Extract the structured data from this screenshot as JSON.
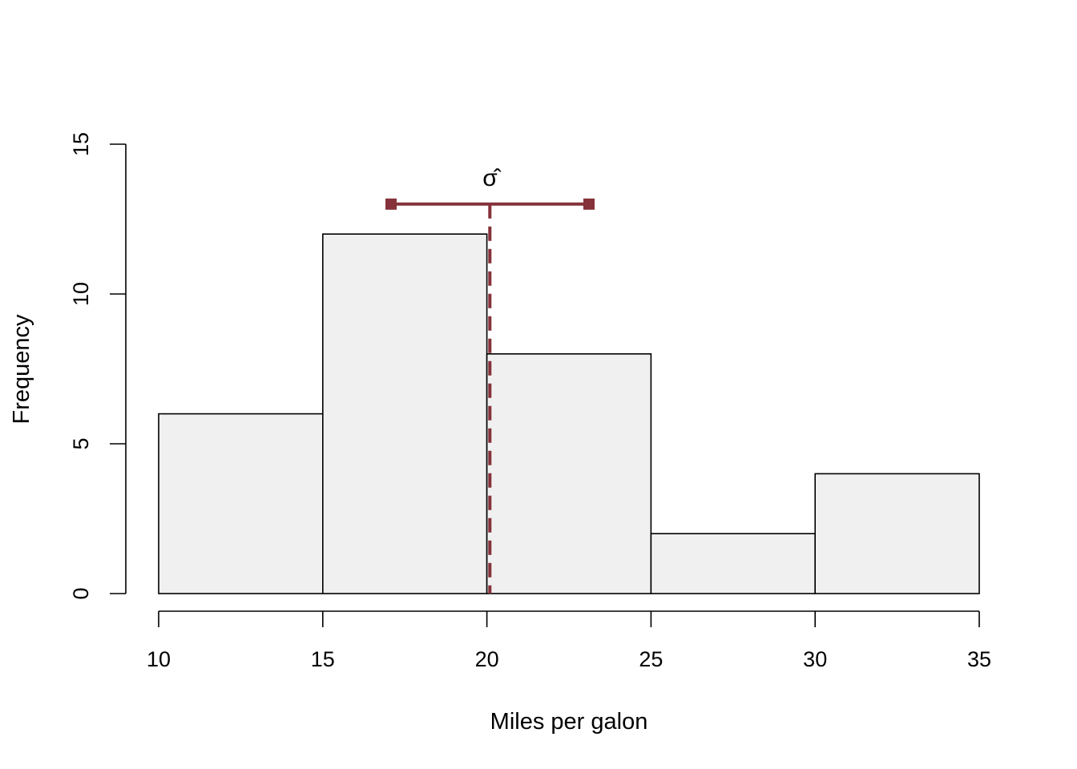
{
  "chart_data": {
    "type": "bar",
    "subtype": "histogram",
    "title": "",
    "xlabel": "Miles per galon",
    "ylabel": "Frequency",
    "bins": [
      [
        10,
        15
      ],
      [
        15,
        20
      ],
      [
        20,
        25
      ],
      [
        25,
        30
      ],
      [
        30,
        35
      ]
    ],
    "categories": [
      "10-15",
      "15-20",
      "20-25",
      "25-30",
      "30-35"
    ],
    "values": [
      6,
      12,
      8,
      2,
      4
    ],
    "xlim": [
      10,
      35
    ],
    "ylim": [
      0,
      15
    ],
    "x_ticks": [
      "10",
      "15",
      "20",
      "25",
      "30",
      "35"
    ],
    "y_ticks": [
      "0",
      "5",
      "10",
      "15"
    ],
    "grid": false,
    "bar_fill": "#f0f0f0",
    "bar_edge": "#000000",
    "annotations": {
      "mean_line": {
        "x": 20.09,
        "style": "dashed",
        "color": "#85323a"
      },
      "sd_bar": {
        "x_start": 17.08,
        "x_end": 23.11,
        "y": 13,
        "color": "#85323a",
        "label": "σ̂"
      }
    }
  }
}
